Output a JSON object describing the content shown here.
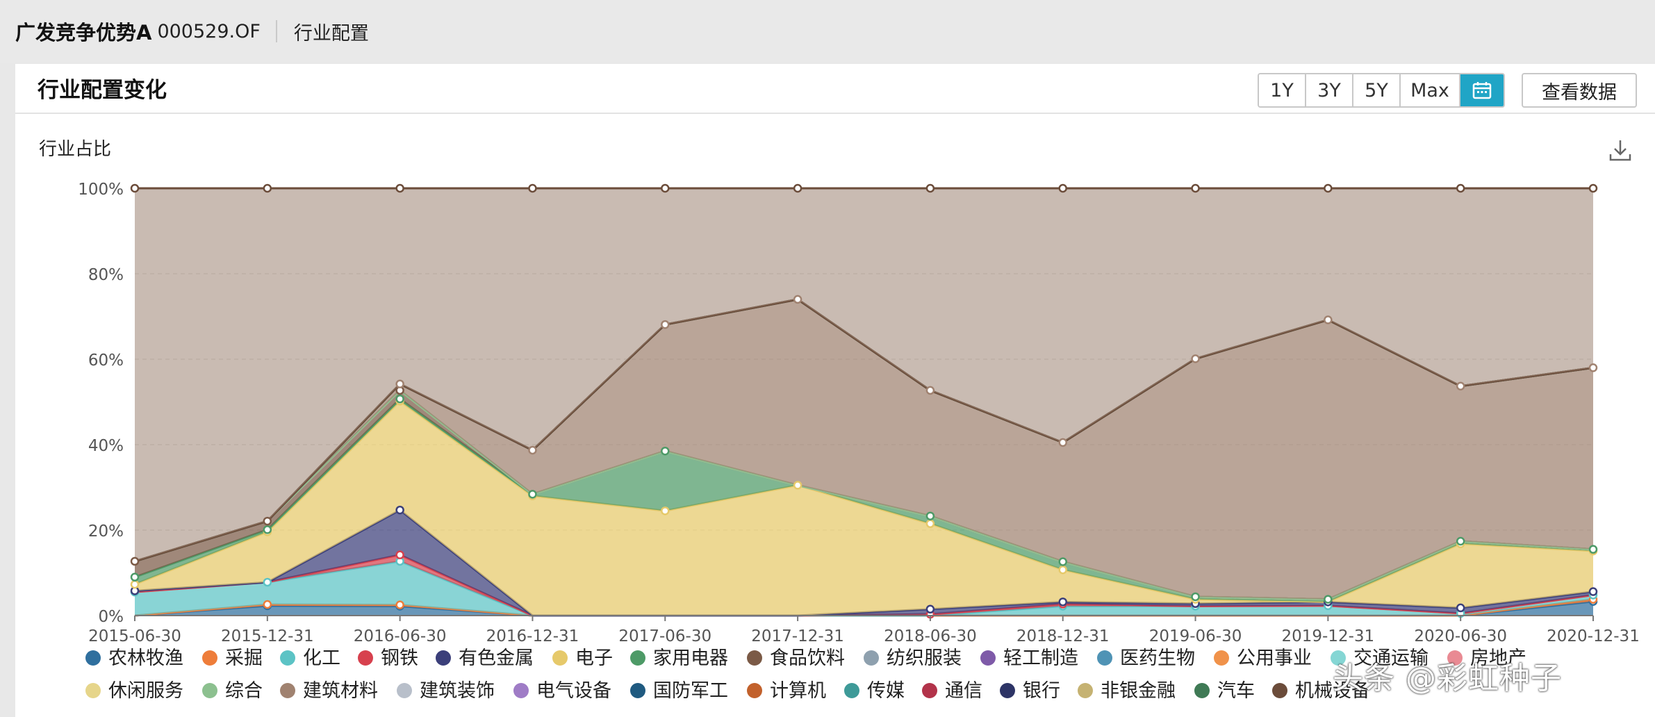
{
  "header": {
    "fund_name": "广发竞争优势A",
    "fund_code": "000529.OF",
    "crumb": "行业配置"
  },
  "card": {
    "title": "行业配置变化",
    "ranges": [
      "1Y",
      "3Y",
      "5Y",
      "Max"
    ],
    "view_data": "查看数据",
    "chart_label": "行业占比"
  },
  "watermark": "头条 @彩虹种子",
  "chart_data": {
    "type": "area",
    "stacked": true,
    "x": [
      "2015-06-30",
      "2015-12-31",
      "2016-06-30",
      "2016-12-31",
      "2017-06-30",
      "2017-12-31",
      "2018-06-30",
      "2018-12-31",
      "2019-06-30",
      "2019-12-31",
      "2020-06-30",
      "2020-12-31"
    ],
    "ylim": [
      0,
      100
    ],
    "yticks": [
      "0%",
      "20%",
      "40%",
      "60%",
      "80%",
      "100%"
    ],
    "grid": true,
    "legend_position": "bottom",
    "series": [
      {
        "name": "农林牧渔",
        "color": "#2f6f9e",
        "values": [
          0,
          2.3,
          2.2,
          0,
          0,
          0,
          0,
          0,
          0,
          0,
          0,
          3.3
        ]
      },
      {
        "name": "采掘",
        "color": "#ee7d3a",
        "values": [
          0,
          0.3,
          0.3,
          0,
          0,
          0,
          0,
          0,
          0,
          0,
          0,
          0.5
        ]
      },
      {
        "name": "化工",
        "color": "#5cc3c5",
        "values": [
          5.5,
          5.2,
          10.2,
          0,
          0,
          0,
          0,
          2.2,
          2.2,
          2.3,
          0.5,
          1
        ]
      },
      {
        "name": "钢铁",
        "color": "#d7414e",
        "values": [
          0,
          0,
          1.5,
          0,
          0,
          0,
          0.3,
          0.5,
          0,
          0,
          0,
          0
        ]
      },
      {
        "name": "有色金属",
        "color": "#3b3f7a",
        "values": [
          0.3,
          0,
          10.5,
          0,
          0,
          0,
          1.2,
          0.5,
          0.6,
          0.9,
          1.3,
          0.8
        ]
      },
      {
        "name": "电子",
        "color": "#e6c96a",
        "values": [
          1.5,
          11.8,
          25.5,
          28,
          24.5,
          30.5,
          20,
          7.5,
          1,
          0,
          15,
          9.5
        ]
      },
      {
        "name": "家用电器",
        "color": "#4d9a67",
        "values": [
          1.7,
          0.5,
          0.5,
          0.4,
          14,
          0,
          1.8,
          1.9,
          0.6,
          0.6,
          0.6,
          0.4
        ]
      },
      {
        "name": "食品饮料",
        "color": "#7b5a46",
        "values": [
          3.7,
          2,
          2,
          0,
          0,
          0,
          0,
          0,
          0,
          0,
          0,
          0
        ]
      },
      {
        "name": "纺织服装",
        "color": "#8ea0ae",
        "values": [
          0,
          0,
          0,
          0,
          0,
          0,
          0,
          0,
          0,
          0,
          0,
          0
        ]
      },
      {
        "name": "轻工制造",
        "color": "#7e5aa8",
        "values": [
          0,
          0,
          0,
          0,
          0,
          0,
          0,
          0,
          0,
          0,
          0,
          0
        ]
      },
      {
        "name": "医药生物",
        "color": "#4f93b5",
        "values": [
          0,
          0,
          0,
          0,
          0,
          0,
          0,
          0,
          0,
          0,
          0,
          0
        ]
      },
      {
        "name": "公用事业",
        "color": "#f0924a",
        "values": [
          0,
          0,
          0,
          0,
          0,
          0,
          0,
          0,
          0,
          0,
          0,
          0
        ]
      },
      {
        "name": "交通运输",
        "color": "#85d6d4",
        "values": [
          0,
          0,
          0,
          0,
          0,
          0,
          0,
          0,
          0,
          0,
          0,
          0
        ]
      },
      {
        "name": "房地产",
        "color": "#e98a93",
        "values": [
          0,
          0,
          0,
          0,
          0,
          0,
          0,
          0,
          0,
          0,
          0,
          0
        ]
      },
      {
        "name": "休闲服务",
        "color": "#e6d58a",
        "values": [
          0,
          0,
          0,
          0,
          0,
          0,
          0,
          0,
          0,
          0,
          0,
          0
        ]
      },
      {
        "name": "综合",
        "color": "#8cc08f",
        "values": [
          0,
          0,
          0,
          0,
          0,
          0,
          0,
          0,
          0,
          0,
          0,
          0
        ]
      },
      {
        "name": "建筑材料",
        "color": "#a08270",
        "values": [
          0,
          0,
          1.5,
          10.3,
          29.6,
          43.5,
          29.4,
          27.9,
          55.7,
          65.4,
          36.3,
          42.5
        ]
      },
      {
        "name": "建筑装饰",
        "color": "#b8bfca",
        "values": [
          0,
          0,
          0,
          0,
          0,
          0,
          0,
          0,
          0,
          0,
          0,
          0
        ]
      },
      {
        "name": "电气设备",
        "color": "#9f7cc6",
        "values": [
          0,
          0,
          0,
          0,
          0,
          0,
          0,
          0,
          0,
          0,
          0,
          0
        ]
      },
      {
        "name": "国防军工",
        "color": "#1f5a80",
        "values": [
          0,
          0,
          0,
          0,
          0,
          0,
          0,
          0,
          0,
          0,
          0,
          0
        ]
      },
      {
        "name": "计算机",
        "color": "#c2612c",
        "values": [
          0,
          0,
          0,
          0,
          0,
          0,
          0,
          0,
          0,
          0,
          0,
          0
        ]
      },
      {
        "name": "传媒",
        "color": "#3e9a98",
        "values": [
          0,
          0,
          0,
          0,
          0,
          0,
          0,
          0,
          0,
          0,
          0,
          0
        ]
      },
      {
        "name": "通信",
        "color": "#b2334a",
        "values": [
          0,
          0,
          0,
          0,
          0,
          0,
          0,
          0,
          0,
          0,
          0,
          0
        ]
      },
      {
        "name": "银行",
        "color": "#2d3466",
        "values": [
          0,
          0,
          0,
          0,
          0,
          0,
          0,
          0,
          0,
          0,
          0,
          0
        ]
      },
      {
        "name": "非银金融",
        "color": "#c5b272",
        "values": [
          0,
          0,
          0,
          0,
          0,
          0,
          0,
          0,
          0,
          0,
          0,
          0
        ]
      },
      {
        "name": "汽车",
        "color": "#3f7a55",
        "values": [
          0,
          0,
          0,
          0,
          0,
          0,
          0,
          0,
          0,
          0,
          0,
          0
        ]
      },
      {
        "name": "机械设备",
        "color": "#6b4c3a",
        "values": [
          0,
          0,
          0,
          0,
          0,
          0,
          0,
          0,
          0,
          0,
          0,
          0
        ]
      }
    ]
  }
}
